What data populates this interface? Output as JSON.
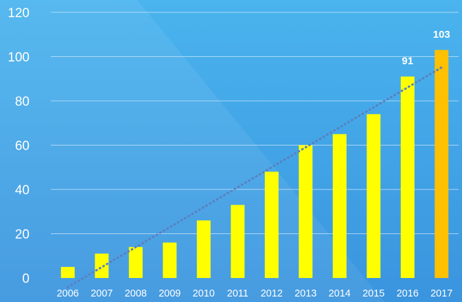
{
  "chart_data": {
    "type": "bar",
    "title": "",
    "xlabel": "",
    "ylabel": "",
    "categories": [
      "2006",
      "2007",
      "2008",
      "2009",
      "2010",
      "2011",
      "2012",
      "2013",
      "2014",
      "2015",
      "2016",
      "2017"
    ],
    "values": [
      5,
      11,
      14,
      16,
      26,
      33,
      48,
      60,
      65,
      74,
      91,
      103
    ],
    "data_labels": [
      {
        "index": 10,
        "text": "91"
      },
      {
        "index": 11,
        "text": "103"
      }
    ],
    "ylim": [
      0,
      120
    ],
    "yticks": [
      0,
      20,
      40,
      60,
      80,
      100,
      120
    ],
    "grid": true,
    "trendline": {
      "type": "linear",
      "style": "dotted",
      "color": "#5b7fbf"
    },
    "colors": {
      "bar": "#ffff00",
      "highlight_bar": "#ffc000",
      "background_top": "#4ab4ee",
      "background_bottom": "#3a94de",
      "gridline": "#cfe6f8",
      "tick_text": "#ffffff",
      "data_label": "#ffffff"
    },
    "highlight_index": 11
  }
}
